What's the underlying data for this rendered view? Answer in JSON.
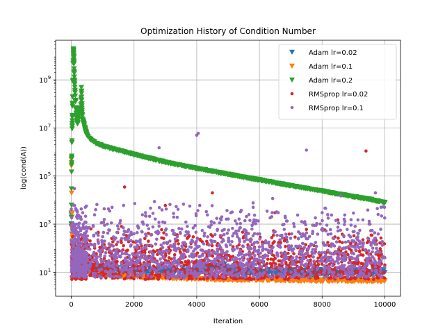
{
  "chart_data": {
    "type": "scatter",
    "title": "Optimization History of Condition Number",
    "xlabel": "Iteration",
    "ylabel": "log(cond(A))",
    "xlim": [
      -500,
      10500
    ],
    "ylim_log10": [
      0,
      10.65
    ],
    "yscale": "log",
    "xticks": [
      0,
      2000,
      4000,
      6000,
      8000,
      10000
    ],
    "xtick_labels": [
      "0",
      "2000",
      "4000",
      "6000",
      "8000",
      "10000"
    ],
    "yticks_log10": [
      1,
      3,
      5,
      7,
      9
    ],
    "ytick_labels": [
      "10",
      "10",
      "10",
      "10",
      "10"
    ],
    "ytick_exponents": [
      "1",
      "3",
      "5",
      "7",
      "9"
    ],
    "grid": true,
    "legend_position": "top-right",
    "series": [
      {
        "name": "Adam lr=0.02",
        "marker": "triangle-down",
        "color": "#1f77b4",
        "x": [
          0,
          10,
          20,
          30,
          40,
          60,
          80,
          100,
          150,
          200,
          300,
          500,
          800,
          1200,
          2000,
          3000,
          4000,
          4800,
          5000,
          6000,
          7000,
          8000,
          9000,
          10000
        ],
        "y": [
          3000,
          800,
          400,
          200,
          120,
          80,
          60,
          40,
          30,
          25,
          20,
          18,
          15,
          14,
          12,
          12,
          11,
          22,
          11,
          10,
          10,
          10,
          10,
          10
        ]
      },
      {
        "name": "Adam lr=0.1",
        "marker": "triangle-down",
        "color": "#ff7f0e",
        "x": [
          0,
          10,
          20,
          40,
          60,
          100,
          200,
          400,
          700,
          1000,
          1500,
          2000,
          3000,
          4000,
          5000,
          6000,
          7000,
          8000,
          9000,
          10000
        ],
        "y": [
          500000,
          20000,
          2000,
          300,
          80,
          40,
          20,
          12,
          9,
          8,
          7,
          6.5,
          6,
          5.5,
          5,
          5,
          4.8,
          4.6,
          4.5,
          4.5
        ]
      },
      {
        "name": "Adam lr=0.2",
        "marker": "triangle-down",
        "color": "#2ca02c",
        "x": [
          0,
          5,
          10,
          20,
          30,
          40,
          50,
          60,
          70,
          80,
          90,
          100,
          120,
          150,
          180,
          200,
          250,
          300,
          320,
          350,
          400,
          450,
          500,
          600,
          700,
          800,
          1000,
          1200,
          1500,
          2000,
          2500,
          3000,
          3500,
          4000,
          4500,
          5000,
          5500,
          6000,
          6500,
          7000,
          7500,
          8000,
          8500,
          9000,
          9500,
          10000
        ],
        "y": [
          1000,
          30000,
          300000,
          3000000,
          15000000,
          200000000,
          900000000,
          5000000000,
          20000000000,
          10000000000,
          3000000000,
          900000000,
          300000000,
          60000000,
          20000000,
          15000000,
          40000000,
          60000000,
          500000000,
          25000000,
          15000000,
          8000000,
          5000000,
          3500000,
          2800000,
          2300000,
          1800000,
          1500000,
          1200000,
          800000,
          550000,
          380000,
          280000,
          210000,
          160000,
          120000,
          90000,
          70000,
          53000,
          40000,
          31000,
          24000,
          18000,
          14000,
          11000,
          8000
        ]
      },
      {
        "name": "RMSprop lr=0.02",
        "marker": "circle",
        "color": "#d62728",
        "x": [
          0,
          50,
          100,
          200,
          400,
          600,
          900,
          1200,
          1600,
          1700,
          2000,
          2500,
          3000,
          3500,
          4000,
          4500,
          5000,
          5500,
          6000,
          6500,
          7000,
          7500,
          8000,
          8500,
          9000,
          9400,
          9500,
          10000
        ],
        "y": [
          1000,
          300,
          80,
          60,
          30,
          200,
          12,
          20,
          800,
          35000,
          15,
          40,
          6000,
          60,
          30,
          20000,
          8,
          300,
          15,
          3000,
          10,
          600,
          9,
          1500,
          8,
          1100000,
          40,
          20
        ]
      },
      {
        "name": "RMSprop lr=0.1",
        "marker": "circle",
        "color": "#9467bd",
        "x": [
          0,
          100,
          200,
          300,
          500,
          700,
          1000,
          1300,
          1600,
          2000,
          2300,
          2800,
          3300,
          3700,
          4000,
          4050,
          4400,
          4800,
          5300,
          5800,
          6200,
          6600,
          7000,
          7300,
          7500,
          7700,
          8000,
          8300,
          8600,
          8800,
          9000,
          9300,
          9500,
          9700,
          10000
        ],
        "y": [
          200,
          30000,
          400,
          2000,
          60,
          800,
          300,
          5000,
          20,
          400,
          1000,
          1500000,
          400,
          800,
          5000000,
          6000000,
          60,
          2000,
          300,
          5000,
          200,
          3000,
          100,
          400,
          1200000,
          500,
          3000,
          150,
          15000,
          600,
          120,
          1500,
          1000,
          20000,
          40
        ]
      }
    ]
  }
}
